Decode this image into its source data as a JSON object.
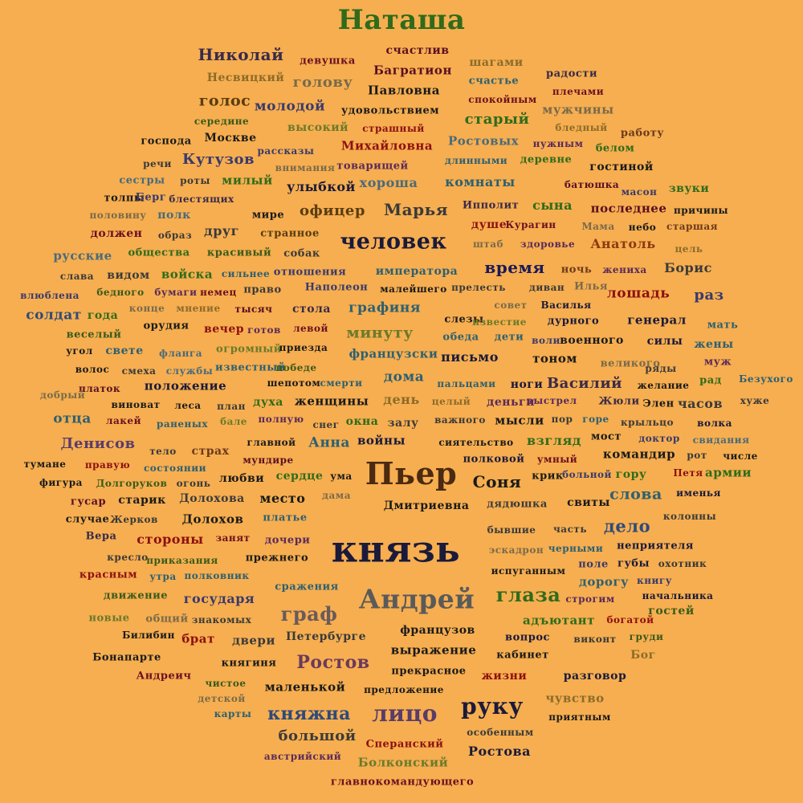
{
  "background": "#F6AE50",
  "words": [
    {
      "t": "Наташа",
      "c": "#2F6B1A"
    },
    {
      "t": "счастлив",
      "c": "#5A0F22"
    },
    {
      "t": "Николай",
      "c": "#3A2A48"
    },
    {
      "t": "девушка",
      "c": "#6B1020"
    },
    {
      "t": "Багратион",
      "c": "#5A0F22"
    },
    {
      "t": "шагами",
      "c": "#8C6B2A"
    },
    {
      "t": "радости",
      "c": "#3A2A48"
    },
    {
      "t": "Несвицкий",
      "c": "#8C6B2A"
    },
    {
      "t": "голову",
      "c": "#7A6A4A"
    },
    {
      "t": "Павловна",
      "c": "#1A1A1A"
    },
    {
      "t": "счастье",
      "c": "#2E6070"
    },
    {
      "t": "плечами",
      "c": "#6B1020"
    },
    {
      "t": "голос",
      "c": "#5A3C10"
    },
    {
      "t": "молодой",
      "c": "#3A3A6B"
    },
    {
      "t": "удовольствием",
      "c": "#1A1A1A"
    },
    {
      "t": "спокойным",
      "c": "#6B1020"
    },
    {
      "t": "мужчины",
      "c": "#7A6A4A"
    },
    {
      "t": "середине",
      "c": "#3A5A1A"
    },
    {
      "t": "высокий",
      "c": "#6B7A2A"
    },
    {
      "t": "страшный",
      "c": "#8C1010"
    },
    {
      "t": "старый",
      "c": "#2F6B1A"
    },
    {
      "t": "бледный",
      "c": "#8C6B2A"
    },
    {
      "t": "работу",
      "c": "#6B3A1A"
    },
    {
      "t": "господа",
      "c": "#1A1A1A"
    },
    {
      "t": "Москве",
      "c": "#1A1A1A"
    },
    {
      "t": "Михайловна",
      "c": "#8C1010"
    },
    {
      "t": "Ростовых",
      "c": "#4A6A7A"
    },
    {
      "t": "нужным",
      "c": "#5A2A5A"
    },
    {
      "t": "белом",
      "c": "#2F6B1A"
    },
    {
      "t": "речи",
      "c": "#3A3A3A"
    },
    {
      "t": "Кутузов",
      "c": "#3A3A6B"
    },
    {
      "t": "рассказы",
      "c": "#3A3A6B"
    },
    {
      "t": "внимания",
      "c": "#7A6A4A"
    },
    {
      "t": "товарищей",
      "c": "#5A2A5A"
    },
    {
      "t": "длинными",
      "c": "#2E6070"
    },
    {
      "t": "деревне",
      "c": "#2F6B1A"
    },
    {
      "t": "гостиной",
      "c": "#1A1A1A"
    },
    {
      "t": "сестры",
      "c": "#4A6A7A"
    },
    {
      "t": "роты",
      "c": "#3A3A3A"
    },
    {
      "t": "милый",
      "c": "#2F6B1A"
    },
    {
      "t": "улыбкой",
      "c": "#1A1A3A"
    },
    {
      "t": "хороша",
      "c": "#4A6A7A"
    },
    {
      "t": "комнаты",
      "c": "#2E6070"
    },
    {
      "t": "батюшка",
      "c": "#5A0F22"
    },
    {
      "t": "масон",
      "c": "#3A3A6B"
    },
    {
      "t": "звуки",
      "c": "#2F6B1A"
    },
    {
      "t": "толпы",
      "c": "#1A1A1A"
    },
    {
      "t": "Берг",
      "c": "#3A3A6B"
    },
    {
      "t": "блестящих",
      "c": "#3A2A48"
    },
    {
      "t": "Ипполит",
      "c": "#3A2A48"
    },
    {
      "t": "сына",
      "c": "#2F6B1A"
    },
    {
      "t": "последнее",
      "c": "#5A0F22"
    },
    {
      "t": "причины",
      "c": "#1A1A1A"
    },
    {
      "t": "половину",
      "c": "#7A6A4A"
    },
    {
      "t": "полк",
      "c": "#4A6A7A"
    },
    {
      "t": "мире",
      "c": "#1A1A1A"
    },
    {
      "t": "офицер",
      "c": "#5A3C10"
    },
    {
      "t": "Марья",
      "c": "#3A3A3A"
    },
    {
      "t": "душе",
      "c": "#8C1010"
    },
    {
      "t": "Курагин",
      "c": "#6B1020"
    },
    {
      "t": "Мама",
      "c": "#7A6A4A"
    },
    {
      "t": "небо",
      "c": "#1A1A1A"
    },
    {
      "t": "старшая",
      "c": "#6B3A1A"
    },
    {
      "t": "должен",
      "c": "#6B1020"
    },
    {
      "t": "образ",
      "c": "#3A3A3A"
    },
    {
      "t": "друг",
      "c": "#3A3A3A"
    },
    {
      "t": "странное",
      "c": "#5A3C10"
    },
    {
      "t": "человек",
      "c": "#1A1A3A"
    },
    {
      "t": "штаб",
      "c": "#7A6A4A"
    },
    {
      "t": "здоровье",
      "c": "#5A2A5A"
    },
    {
      "t": "Анатоль",
      "c": "#8C3A10"
    },
    {
      "t": "цель",
      "c": "#8C6B2A"
    },
    {
      "t": "русские",
      "c": "#4A6A7A"
    },
    {
      "t": "общества",
      "c": "#2F6B1A"
    },
    {
      "t": "красивый",
      "c": "#3A5A1A"
    },
    {
      "t": "собак",
      "c": "#3A3A3A"
    },
    {
      "t": "слава",
      "c": "#3A3A3A"
    },
    {
      "t": "видом",
      "c": "#3A3A3A"
    },
    {
      "t": "войска",
      "c": "#2F6B1A"
    },
    {
      "t": "сильнее",
      "c": "#2E6070"
    },
    {
      "t": "отношения",
      "c": "#3A3A6B"
    },
    {
      "t": "императора",
      "c": "#2E6070"
    },
    {
      "t": "время",
      "c": "#1A1A5A"
    },
    {
      "t": "ночь",
      "c": "#6B3A1A"
    },
    {
      "t": "жениха",
      "c": "#5A2A5A"
    },
    {
      "t": "Борис",
      "c": "#3A3A3A"
    },
    {
      "t": "влюблена",
      "c": "#3A3A6B"
    },
    {
      "t": "бедного",
      "c": "#3A5A1A"
    },
    {
      "t": "бумаги",
      "c": "#5A2A5A"
    },
    {
      "t": "немец",
      "c": "#6B1020"
    },
    {
      "t": "право",
      "c": "#3A3A3A"
    },
    {
      "t": "Наполеон",
      "c": "#3A3A6B"
    },
    {
      "t": "малейшего",
      "c": "#1A1A1A"
    },
    {
      "t": "прелесть",
      "c": "#3A3A3A"
    },
    {
      "t": "диван",
      "c": "#3A3A3A"
    },
    {
      "t": "Илья",
      "c": "#7A6A4A"
    },
    {
      "t": "лошадь",
      "c": "#8C1010"
    },
    {
      "t": "раз",
      "c": "#3A3A6B"
    },
    {
      "t": "солдат",
      "c": "#2E4A7A"
    },
    {
      "t": "года",
      "c": "#2F6B1A"
    },
    {
      "t": "конце",
      "c": "#7A6A4A"
    },
    {
      "t": "мнение",
      "c": "#8C6B2A"
    },
    {
      "t": "тысяч",
      "c": "#5A0F22"
    },
    {
      "t": "стола",
      "c": "#3A2A48"
    },
    {
      "t": "графиня",
      "c": "#2E6070"
    },
    {
      "t": "совет",
      "c": "#7A6A4A"
    },
    {
      "t": "Василья",
      "c": "#1A1A3A"
    },
    {
      "t": "слезы",
      "c": "#1A1A1A"
    },
    {
      "t": "известие",
      "c": "#6B7A2A"
    },
    {
      "t": "дурного",
      "c": "#1A1A3A"
    },
    {
      "t": "генерал",
      "c": "#1A1A3A"
    },
    {
      "t": "мать",
      "c": "#2E6070"
    },
    {
      "t": "веселый",
      "c": "#3A5A1A"
    },
    {
      "t": "орудия",
      "c": "#1A1A1A"
    },
    {
      "t": "вечер",
      "c": "#8C1010"
    },
    {
      "t": "готов",
      "c": "#5A2A5A"
    },
    {
      "t": "левой",
      "c": "#6B1020"
    },
    {
      "t": "минуту",
      "c": "#6B7A2A"
    },
    {
      "t": "обеда",
      "c": "#2E6070"
    },
    {
      "t": "дети",
      "c": "#2E6070"
    },
    {
      "t": "воли",
      "c": "#3A3A6B"
    },
    {
      "t": "военного",
      "c": "#1A1A1A"
    },
    {
      "t": "силы",
      "c": "#1A1A3A"
    },
    {
      "t": "жены",
      "c": "#2E6070"
    },
    {
      "t": "угол",
      "c": "#1A1A1A"
    },
    {
      "t": "свете",
      "c": "#2E6070"
    },
    {
      "t": "фланга",
      "c": "#4A6A7A"
    },
    {
      "t": "огромный",
      "c": "#6B7A2A"
    },
    {
      "t": "приезда",
      "c": "#1A1A1A"
    },
    {
      "t": "французски",
      "c": "#2E6070"
    },
    {
      "t": "письмо",
      "c": "#1A1A3A"
    },
    {
      "t": "тоном",
      "c": "#1A1A1A"
    },
    {
      "t": "великого",
      "c": "#7A6A4A"
    },
    {
      "t": "муж",
      "c": "#5A2A5A"
    },
    {
      "t": "волос",
      "c": "#1A1A1A"
    },
    {
      "t": "смеха",
      "c": "#3A3A3A"
    },
    {
      "t": "службы",
      "c": "#4A6A7A"
    },
    {
      "t": "известный",
      "c": "#2E6070"
    },
    {
      "t": "победе",
      "c": "#3A5A1A"
    },
    {
      "t": "дома",
      "c": "#2E6070"
    },
    {
      "t": "ряды",
      "c": "#3A3A3A"
    },
    {
      "t": "рад",
      "c": "#2F6B1A"
    },
    {
      "t": "Безухого",
      "c": "#2E6070"
    },
    {
      "t": "платок",
      "c": "#5A0F22"
    },
    {
      "t": "положение",
      "c": "#1A1A3A"
    },
    {
      "t": "шепотом",
      "c": "#1A1A1A"
    },
    {
      "t": "смерти",
      "c": "#2E6070"
    },
    {
      "t": "пальцами",
      "c": "#2E6070"
    },
    {
      "t": "ноги",
      "c": "#1A1A3A"
    },
    {
      "t": "Василий",
      "c": "#3A2A48"
    },
    {
      "t": "желание",
      "c": "#1A1A1A"
    },
    {
      "t": "добрый",
      "c": "#7A6A4A"
    },
    {
      "t": "виноват",
      "c": "#1A1A1A"
    },
    {
      "t": "леса",
      "c": "#1A1A1A"
    },
    {
      "t": "план",
      "c": "#3A3A3A"
    },
    {
      "t": "духа",
      "c": "#2F6B1A"
    },
    {
      "t": "женщины",
      "c": "#1A1A1A"
    },
    {
      "t": "день",
      "c": "#8C6B2A"
    },
    {
      "t": "целый",
      "c": "#8C6B2A"
    },
    {
      "t": "деньги",
      "c": "#5A2A5A"
    },
    {
      "t": "выстрел",
      "c": "#5A2A5A"
    },
    {
      "t": "Жюли",
      "c": "#3A2A48"
    },
    {
      "t": "Элен",
      "c": "#1A1A1A"
    },
    {
      "t": "часов",
      "c": "#3A3A3A"
    },
    {
      "t": "хуже",
      "c": "#3A3A3A"
    },
    {
      "t": "отца",
      "c": "#2E6070"
    },
    {
      "t": "лакей",
      "c": "#6B1020"
    },
    {
      "t": "раненых",
      "c": "#2E6070"
    },
    {
      "t": "бале",
      "c": "#6B7A2A"
    },
    {
      "t": "полную",
      "c": "#5A2A5A"
    },
    {
      "t": "снег",
      "c": "#3A3A3A"
    },
    {
      "t": "окна",
      "c": "#2F6B1A"
    },
    {
      "t": "залу",
      "c": "#3A3A3A"
    },
    {
      "t": "важного",
      "c": "#3A3A3A"
    },
    {
      "t": "мысли",
      "c": "#1A1A1A"
    },
    {
      "t": "пор",
      "c": "#3A3A3A"
    },
    {
      "t": "горе",
      "c": "#2E6070"
    },
    {
      "t": "крыльцо",
      "c": "#3A3A3A"
    },
    {
      "t": "волка",
      "c": "#1A1A3A"
    },
    {
      "t": "Денисов",
      "c": "#5A3C6B"
    },
    {
      "t": "главной",
      "c": "#1A1A1A"
    },
    {
      "t": "Анна",
      "c": "#2E6070"
    },
    {
      "t": "войны",
      "c": "#1A1A3A"
    },
    {
      "t": "сиятельство",
      "c": "#1A1A1A"
    },
    {
      "t": "взгляд",
      "c": "#2F6B1A"
    },
    {
      "t": "мост",
      "c": "#1A1A1A"
    },
    {
      "t": "доктор",
      "c": "#3A3A6B"
    },
    {
      "t": "свидания",
      "c": "#4A6A7A"
    },
    {
      "t": "тело",
      "c": "#3A3A3A"
    },
    {
      "t": "страх",
      "c": "#6B3A1A"
    },
    {
      "t": "мундире",
      "c": "#5A0F22"
    },
    {
      "t": "Пьер",
      "c": "#4A2A10"
    },
    {
      "t": "полковой",
      "c": "#1A1A3A"
    },
    {
      "t": "умный",
      "c": "#6B1020"
    },
    {
      "t": "командир",
      "c": "#1A1A1A"
    },
    {
      "t": "рот",
      "c": "#3A3A3A"
    },
    {
      "t": "числе",
      "c": "#1A1A1A"
    },
    {
      "t": "тумане",
      "c": "#1A1A1A"
    },
    {
      "t": "правую",
      "c": "#8C1010"
    },
    {
      "t": "состоянии",
      "c": "#2E6070"
    },
    {
      "t": "любви",
      "c": "#1A1A1A"
    },
    {
      "t": "сердце",
      "c": "#2F6B1A"
    },
    {
      "t": "ума",
      "c": "#1A1A1A"
    },
    {
      "t": "Соня",
      "c": "#1A1A1A"
    },
    {
      "t": "крик",
      "c": "#1A1A1A"
    },
    {
      "t": "больной",
      "c": "#3A3A6B"
    },
    {
      "t": "гору",
      "c": "#2F6B1A"
    },
    {
      "t": "Петя",
      "c": "#8C1010"
    },
    {
      "t": "армии",
      "c": "#2F6B1A"
    },
    {
      "t": "фигура",
      "c": "#1A1A1A"
    },
    {
      "t": "Долгоруков",
      "c": "#3A5A1A"
    },
    {
      "t": "огонь",
      "c": "#3A3A3A"
    },
    {
      "t": "дама",
      "c": "#7A6A4A"
    },
    {
      "t": "слова",
      "c": "#2E6070"
    },
    {
      "t": "именья",
      "c": "#1A1A3A"
    },
    {
      "t": "гусар",
      "c": "#5A0F22"
    },
    {
      "t": "старик",
      "c": "#1A1A1A"
    },
    {
      "t": "Долохова",
      "c": "#3A3A3A"
    },
    {
      "t": "место",
      "c": "#1A1A1A"
    },
    {
      "t": "Дмитриевна",
      "c": "#1A1A1A"
    },
    {
      "t": "дядюшка",
      "c": "#3A3A3A"
    },
    {
      "t": "свиты",
      "c": "#1A1A1A"
    },
    {
      "t": "колонны",
      "c": "#3A3A3A"
    },
    {
      "t": "случае",
      "c": "#1A1A1A"
    },
    {
      "t": "Жерков",
      "c": "#3A3A3A"
    },
    {
      "t": "Долохов",
      "c": "#1A1A1A"
    },
    {
      "t": "платье",
      "c": "#2E6070"
    },
    {
      "t": "бывшие",
      "c": "#3A3A3A"
    },
    {
      "t": "часть",
      "c": "#3A3A3A"
    },
    {
      "t": "дело",
      "c": "#2E4A7A"
    },
    {
      "t": "Вера",
      "c": "#3A2A48"
    },
    {
      "t": "стороны",
      "c": "#8C1010"
    },
    {
      "t": "занят",
      "c": "#6B1020"
    },
    {
      "t": "дочери",
      "c": "#5A2A5A"
    },
    {
      "t": "князь",
      "c": "#1A1A3A"
    },
    {
      "t": "эскадрон",
      "c": "#7A6A4A"
    },
    {
      "t": "черными",
      "c": "#2E6070"
    },
    {
      "t": "неприятеля",
      "c": "#1A1A3A"
    },
    {
      "t": "кресло",
      "c": "#3A3A3A"
    },
    {
      "t": "приказания",
      "c": "#3A5A1A"
    },
    {
      "t": "прежнего",
      "c": "#1A1A1A"
    },
    {
      "t": "испуганным",
      "c": "#1A1A1A"
    },
    {
      "t": "поле",
      "c": "#3A3A6B"
    },
    {
      "t": "губы",
      "c": "#1A1A3A"
    },
    {
      "t": "охотник",
      "c": "#3A3A3A"
    },
    {
      "t": "красным",
      "c": "#8C1010"
    },
    {
      "t": "утра",
      "c": "#2E6070"
    },
    {
      "t": "полковник",
      "c": "#2E6070"
    },
    {
      "t": "дорогу",
      "c": "#2E6070"
    },
    {
      "t": "книгу",
      "c": "#3A3A6B"
    },
    {
      "t": "сражения",
      "c": "#2E6070"
    },
    {
      "t": "Андрей",
      "c": "#5A5A5A"
    },
    {
      "t": "глаза",
      "c": "#2F6B1A"
    },
    {
      "t": "движение",
      "c": "#3A5A1A"
    },
    {
      "t": "государя",
      "c": "#3A3A6B"
    },
    {
      "t": "строгим",
      "c": "#5A2A5A"
    },
    {
      "t": "начальника",
      "c": "#1A1A3A"
    },
    {
      "t": "новые",
      "c": "#6B7A2A"
    },
    {
      "t": "общий",
      "c": "#7A6A4A"
    },
    {
      "t": "знакомых",
      "c": "#3A3A3A"
    },
    {
      "t": "граф",
      "c": "#6B5A5A"
    },
    {
      "t": "адъютант",
      "c": "#2F6B1A"
    },
    {
      "t": "богатой",
      "c": "#8C1010"
    },
    {
      "t": "гостей",
      "c": "#3A5A1A"
    },
    {
      "t": "Билибин",
      "c": "#1A1A1A"
    },
    {
      "t": "брат",
      "c": "#8C1010"
    },
    {
      "t": "двери",
      "c": "#3A3A3A"
    },
    {
      "t": "Петербурге",
      "c": "#3A3A3A"
    },
    {
      "t": "французов",
      "c": "#1A1A1A"
    },
    {
      "t": "вопрос",
      "c": "#1A1A3A"
    },
    {
      "t": "виконт",
      "c": "#3A3A3A"
    },
    {
      "t": "груди",
      "c": "#3A5A1A"
    },
    {
      "t": "Бонапарте",
      "c": "#1A1A1A"
    },
    {
      "t": "выражение",
      "c": "#1A1A1A"
    },
    {
      "t": "кабинет",
      "c": "#1A1A1A"
    },
    {
      "t": "Бог",
      "c": "#8C6B2A"
    },
    {
      "t": "Андреич",
      "c": "#6B1020"
    },
    {
      "t": "княгиня",
      "c": "#1A1A1A"
    },
    {
      "t": "Ростов",
      "c": "#6B3A5A"
    },
    {
      "t": "прекрасное",
      "c": "#1A1A1A"
    },
    {
      "t": "жизни",
      "c": "#8C1010"
    },
    {
      "t": "разговор",
      "c": "#1A1A3A"
    },
    {
      "t": "чистое",
      "c": "#3A5A1A"
    },
    {
      "t": "маленькой",
      "c": "#1A1A1A"
    },
    {
      "t": "предложение",
      "c": "#1A1A1A"
    },
    {
      "t": "детской",
      "c": "#7A6A4A"
    },
    {
      "t": "чувство",
      "c": "#8C6B2A"
    },
    {
      "t": "карты",
      "c": "#2E6070"
    },
    {
      "t": "княжна",
      "c": "#2E4A7A"
    },
    {
      "t": "лицо",
      "c": "#5A3C6B"
    },
    {
      "t": "руку",
      "c": "#1A1A3A"
    },
    {
      "t": "приятным",
      "c": "#1A1A1A"
    },
    {
      "t": "большой",
      "c": "#3A3A3A"
    },
    {
      "t": "особенным",
      "c": "#3A3A3A"
    },
    {
      "t": "Сперанский",
      "c": "#8C1010"
    },
    {
      "t": "австрийский",
      "c": "#5A2A5A"
    },
    {
      "t": "Болконский",
      "c": "#6B7A2A"
    },
    {
      "t": "Ростова",
      "c": "#1A1A3A"
    },
    {
      "t": "главнокомандующего",
      "c": "#6B1020"
    }
  ]
}
